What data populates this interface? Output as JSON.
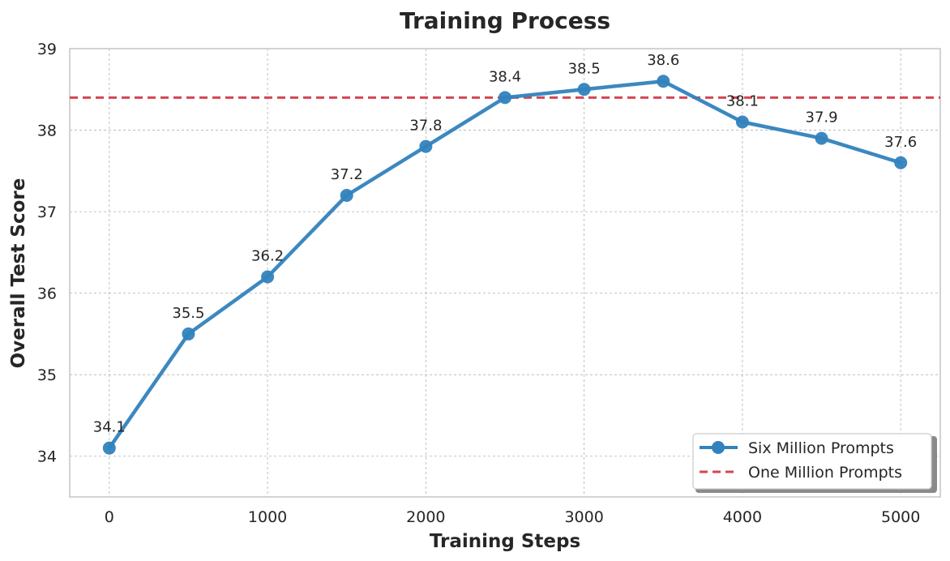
{
  "chart_data": {
    "type": "line",
    "title": "Training Process",
    "xlabel": "Training Steps",
    "ylabel": "Overall Test Score",
    "xlim": [
      -250,
      5250
    ],
    "ylim": [
      33.5,
      39
    ],
    "x_ticks": [
      0,
      1000,
      2000,
      3000,
      4000,
      5000
    ],
    "y_ticks": [
      34,
      35,
      36,
      37,
      38,
      39
    ],
    "grid": true,
    "legend_position": "bottom-right",
    "series": [
      {
        "name": "Six Million Prompts",
        "style": "solid line with circle markers",
        "color": "#3182bd",
        "x": [
          0,
          500,
          1000,
          1500,
          2000,
          2500,
          3000,
          3500,
          4000,
          4500,
          5000
        ],
        "y": [
          34.1,
          35.5,
          36.2,
          37.2,
          37.8,
          38.4,
          38.5,
          38.6,
          38.1,
          37.9,
          37.6
        ],
        "data_labels": [
          "34.1",
          "35.5",
          "36.2",
          "37.2",
          "37.8",
          "38.4",
          "38.5",
          "38.6",
          "38.1",
          "37.9",
          "37.6"
        ]
      },
      {
        "name": "One Million Prompts",
        "style": "dashed horizontal line",
        "color": "#d64550",
        "y": 38.4
      }
    ]
  }
}
